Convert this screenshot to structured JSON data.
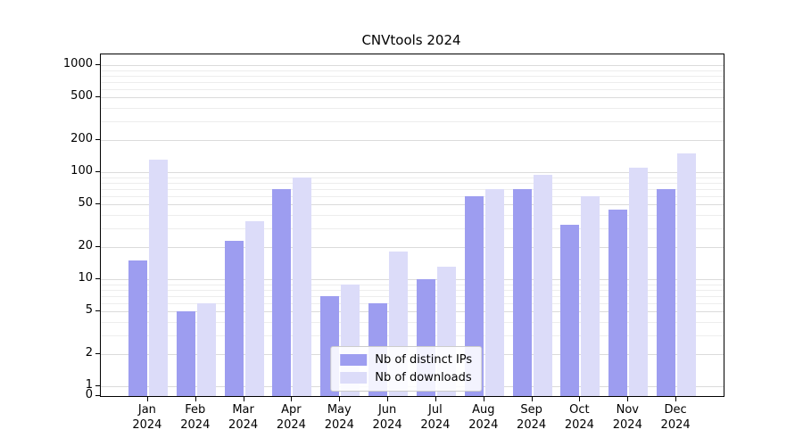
{
  "chart_data": {
    "type": "bar",
    "title": "CNVtools 2024",
    "xlabel": "",
    "ylabel": "",
    "yscale": "log",
    "yticks": [
      0,
      1,
      2,
      5,
      10,
      20,
      50,
      100,
      200,
      500,
      1000
    ],
    "grid": "horizontal",
    "legend_position": "bottom-center",
    "categories": [
      "Jan 2024",
      "Feb 2024",
      "Mar 2024",
      "Apr 2024",
      "May 2024",
      "Jun 2024",
      "Jul 2024",
      "Aug 2024",
      "Sep 2024",
      "Oct 2024",
      "Nov 2024",
      "Dec 2024"
    ],
    "series": [
      {
        "name": "Nb of distinct IPs",
        "color": "#9d9df0",
        "values": [
          15,
          5,
          23,
          70,
          7,
          6,
          10,
          60,
          70,
          32,
          45,
          70
        ]
      },
      {
        "name": "Nb of downloads",
        "color": "#dcdcf9",
        "values": [
          130,
          6,
          35,
          90,
          9,
          18,
          13,
          70,
          95,
          60,
          110,
          150
        ]
      }
    ]
  }
}
